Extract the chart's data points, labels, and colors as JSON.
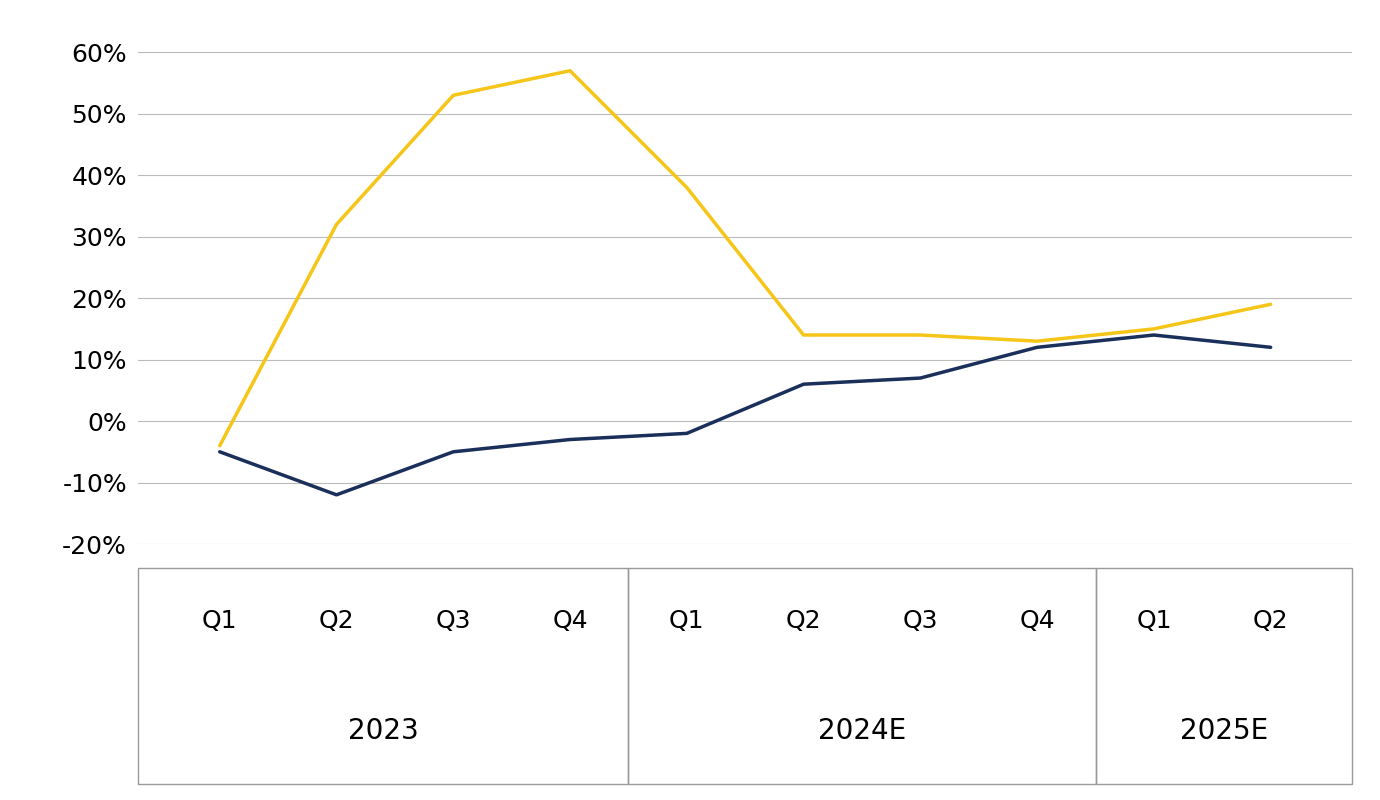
{
  "x_labels": [
    "Q1",
    "Q2",
    "Q3",
    "Q4",
    "Q1",
    "Q2",
    "Q3",
    "Q4",
    "Q1",
    "Q2"
  ],
  "group_labels": [
    "2023",
    "2024E",
    "2025E"
  ],
  "blue_line": [
    -5,
    -12,
    -5,
    -3,
    -2,
    6,
    7,
    12,
    14,
    12
  ],
  "gold_line": [
    -4,
    32,
    53,
    57,
    38,
    14,
    14,
    13,
    15,
    19
  ],
  "blue_color": "#1a2f5a",
  "gold_color": "#f5c518",
  "ylim": [
    -20,
    62
  ],
  "yticks": [
    -20,
    -10,
    0,
    10,
    20,
    30,
    40,
    50,
    60
  ],
  "background_color": "#ffffff",
  "grid_color": "#bbbbbb",
  "line_width": 2.5,
  "tick_fontsize": 18,
  "group_fontsize": 20,
  "box_color": "#999999"
}
